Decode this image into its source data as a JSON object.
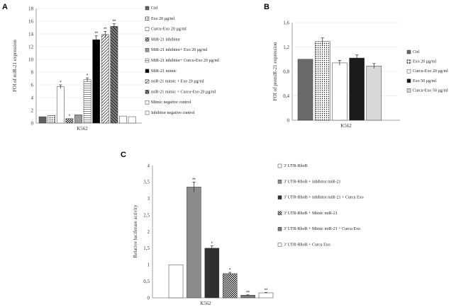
{
  "chart_data": [
    {
      "id": "A",
      "panel": "A",
      "type": "bar",
      "ylabel": "FOI  of  miR-21 expression",
      "xlabel": "K562",
      "ylim": [
        0,
        18
      ],
      "ytick_labels": [
        "0",
        "2",
        "4",
        "6",
        "8",
        "10",
        "12",
        "14",
        "16",
        "18"
      ],
      "grid": true,
      "legend_position": "right",
      "series": [
        {
          "name": "Ctrl",
          "value": 1.0,
          "err": 0,
          "star": "",
          "fill": "#606060"
        },
        {
          "name": "Exo 20 µg/ml",
          "value": 1.2,
          "err": 0,
          "star": "",
          "fill": "dots"
        },
        {
          "name": "Curcu-Exo  20 µg/ml",
          "value": 5.7,
          "err": 0.3,
          "star": "*",
          "fill": "#ffffff"
        },
        {
          "name": "MiR-21 inhibitor",
          "value": 0.7,
          "err": 0,
          "star": "*",
          "fill": "checker"
        },
        {
          "name": "MiR-21 inhibitor+ Exo 20 µg/ml",
          "value": 1.3,
          "err": 0,
          "star": "",
          "fill": "#9a9a9a"
        },
        {
          "name": "MiR-21 inhibitor+ Curcu-Exo 20 µg/ml",
          "value": 6.8,
          "err": 0.3,
          "star": "*",
          "fill": "zigzag"
        },
        {
          "name": "MiR-21 mimic",
          "value": 13.1,
          "err": 0.6,
          "star": "**",
          "fill": "#000000"
        },
        {
          "name": "miR-21 mimic + Exo  20 µg/ml",
          "value": 13.9,
          "err": 0.5,
          "star": "**",
          "fill": "diag"
        },
        {
          "name": "miR-21 mimic + Curcu-Exo 20 µg/ml",
          "value": 15.2,
          "err": 0.4,
          "star": "**",
          "fill": "hatch"
        },
        {
          "name": "Mimic negative control",
          "value": 1.1,
          "err": 0,
          "star": "",
          "fill": "#ffffff"
        },
        {
          "name": "Inhibitor negative control",
          "value": 1.0,
          "err": 0,
          "star": "",
          "fill": "#ffffff"
        }
      ]
    },
    {
      "id": "B",
      "panel": "B",
      "type": "bar",
      "ylabel": "FOI of premiR-21 expression",
      "xlabel": "K562",
      "ylim": [
        0,
        1.6
      ],
      "ytick_labels": [
        "0",
        "0,4",
        "0,8",
        "1,2",
        "1,6"
      ],
      "grid": true,
      "legend_position": "right",
      "series": [
        {
          "name": "Ctrl",
          "value": 1.0,
          "err": 0,
          "star": "",
          "fill": "#6a6a6a"
        },
        {
          "name": "Exo 20 µg/ml",
          "value": 1.29,
          "err": 0.06,
          "star": "",
          "fill": "dots"
        },
        {
          "name": "Curcu-Exo  20 µg/ml",
          "value": 0.94,
          "err": 0.04,
          "star": "",
          "fill": "#ffffff"
        },
        {
          "name": "Exo  50 µg/ml",
          "value": 1.02,
          "err": 0.05,
          "star": "",
          "fill": "#1a1a1a"
        },
        {
          "name": "Curcu-Exo 50 µg/ml",
          "value": 0.89,
          "err": 0.04,
          "star": "",
          "fill": "#d9d9d9"
        }
      ]
    },
    {
      "id": "C",
      "panel": "C",
      "type": "bar",
      "ylabel": "Relative luciferase activity",
      "xlabel": "K562",
      "ylim": [
        0,
        4
      ],
      "ytick_labels": [
        "0",
        "0,5",
        "1",
        "1,5",
        "2",
        "2,5",
        "3",
        "3,5",
        "4"
      ],
      "grid": false,
      "legend_position": "right",
      "series": [
        {
          "name": "3' UTR-RhoB",
          "value": 1.0,
          "err": 0,
          "star": "",
          "fill": "#ffffff"
        },
        {
          "name": "3' UTR-RhoB + inhibitor miR-21",
          "value": 3.35,
          "err": 0.15,
          "star": "**",
          "fill": "#8c8c8c"
        },
        {
          "name": "3' UTR-RhoB + inhibitor miR-21 + Curcu Exo",
          "value": 1.5,
          "err": 0.07,
          "star": "*",
          "fill": "#303030"
        },
        {
          "name": "3' UTR-RhoB + Mimic miR-21",
          "value": 0.73,
          "err": 0.04,
          "star": "*",
          "fill": "checker"
        },
        {
          "name": "3' UTR-RhoB + Mimic miR-21 + Curcu Exo",
          "value": 0.08,
          "err": 0.01,
          "star": "**",
          "fill": "#7a7a7a"
        },
        {
          "name": "3' UTR-RhoB  + Curcu Exo",
          "value": 0.15,
          "err": 0.01,
          "star": "**",
          "fill": "#ffffff"
        }
      ]
    }
  ]
}
